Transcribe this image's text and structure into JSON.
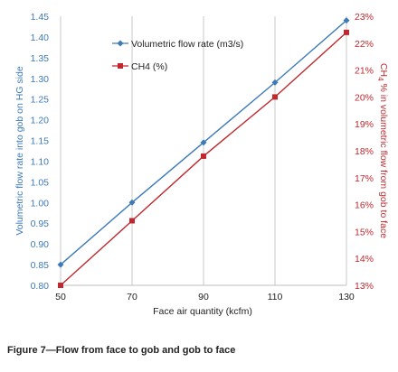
{
  "chart_data": {
    "type": "line",
    "x": [
      50,
      70,
      90,
      110,
      130
    ],
    "xlabel": "Face air quantity (kcfm)",
    "xticks": [
      "50",
      "70",
      "90",
      "110",
      "130"
    ],
    "xlim": [
      50,
      130
    ],
    "grid": "vertical",
    "legend_position": "top-left",
    "series": [
      {
        "name": "Volumetric flow rate (m3/s)",
        "axis": "left",
        "color": "#3d7ab8",
        "marker": "diamond",
        "values": [
          0.85,
          1.0,
          1.145,
          1.29,
          1.44
        ]
      },
      {
        "name": "CH4 (%)",
        "axis": "right",
        "color": "#c0282e",
        "marker": "square",
        "values": [
          13.0,
          15.4,
          17.8,
          20.0,
          22.4
        ]
      }
    ],
    "left_axis": {
      "label": "Volumetric flow rate into gob on HG side",
      "ylim": [
        0.8,
        1.45
      ],
      "ticks": [
        "0.80",
        "0.85",
        "0.90",
        "0.95",
        "1.00",
        "1.05",
        "1.10",
        "1.15",
        "1.20",
        "1.25",
        "1.30",
        "1.35",
        "1.40",
        "1.45"
      ],
      "color": "#3d7ab8"
    },
    "right_axis": {
      "label_prefix": "CH",
      "label_sub": "4",
      "label_rest": " % in volumetric flow from gob to face",
      "ylim": [
        13,
        23
      ],
      "ticks": [
        "13%",
        "14%",
        "15%",
        "16%",
        "17%",
        "18%",
        "19%",
        "20%",
        "21%",
        "22%",
        "23%"
      ],
      "color": "#c0282e"
    }
  },
  "caption": "Figure 7—Flow from face to gob and gob to face"
}
